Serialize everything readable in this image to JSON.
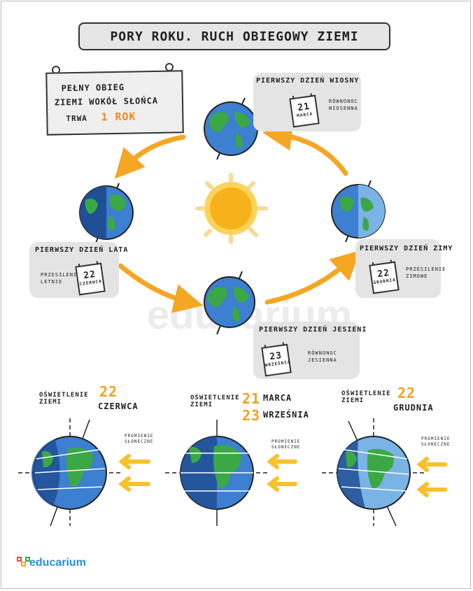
{
  "title": "Pory roku. Ruch obiegowy Ziemi",
  "orbit_sign": {
    "line1": "Pełny obieg",
    "line2": "Ziemi wokół Słońca",
    "line3": "trwa",
    "duration": "1 rok"
  },
  "seasons": {
    "spring": {
      "title": "Pierwszy dzień wiosny",
      "day": "21",
      "month": "marca",
      "note": "Równonoc wiosenna"
    },
    "summer": {
      "title": "Pierwszy dzień lata",
      "day": "22",
      "month": "czerwca",
      "note": "Przesilenie letnie"
    },
    "autumn": {
      "title": "Pierwszy dzień jesieni",
      "day": "23",
      "month": "września",
      "note": "Równonoc jesienna"
    },
    "winter": {
      "title": "Pierwszy dzień zimy",
      "day": "22",
      "month": "grudnia",
      "note": "Przesilenie zimowe"
    }
  },
  "illumination": [
    {
      "label": "Oświetlenie Ziemi",
      "day1": "22",
      "month1": "czerwca",
      "rays": "Promienie słoneczne"
    },
    {
      "label": "Oświetlenie Ziemi",
      "day1": "21",
      "month1": "marca",
      "day2": "23",
      "month2": "września",
      "rays": "Promienie słoneczne"
    },
    {
      "label": "Oświetlenie Ziemi",
      "day1": "22",
      "month1": "grudnia",
      "rays": "Promienie słoneczne"
    }
  ],
  "watermark": "educarium",
  "logo": "educarium",
  "colors": {
    "arrow": "#f5a623",
    "ocean": "#3d7fd0",
    "land": "#3aa845",
    "sun": "#f7b21b",
    "panel": "#e4e4e4"
  }
}
